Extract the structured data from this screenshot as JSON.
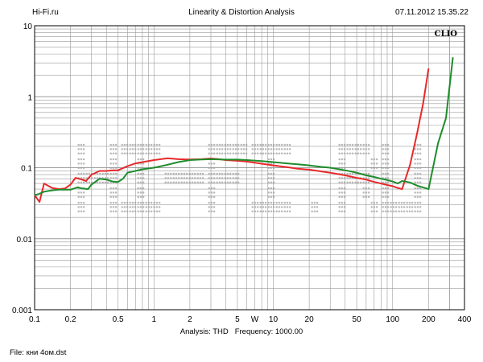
{
  "header": {
    "left": "Hi-Fi.ru",
    "center": "Linearity & Distortion Analysis",
    "right": "07.11.2012 15.35.22"
  },
  "brand": "CLIO",
  "watermark": "HI-FI.RU",
  "footer": {
    "analysis_label": "Analysis:",
    "analysis_value": "THD",
    "frequency_label": "Frequency:",
    "frequency_value": "1000.00",
    "file_label": "File:",
    "file_value": "кни 4ом.dst"
  },
  "colors": {
    "red_series": "#e8292b",
    "green_series": "#1e8c2b",
    "grid": "#9a9a9a",
    "watermark": "#b9b9b9"
  },
  "chart_data": {
    "type": "line",
    "x_scale": "log",
    "y_scale": "log",
    "xlim": [
      0.1,
      400
    ],
    "ylim": [
      0.001,
      10
    ],
    "x_tick_labels": [
      "0.1",
      "0.2",
      "0.5",
      "1",
      "2",
      "5",
      "W",
      "10",
      "20",
      "50",
      "100",
      "200",
      "400"
    ],
    "x_tick_values": [
      0.1,
      0.2,
      0.5,
      1,
      2,
      5,
      7,
      10,
      20,
      50,
      100,
      200,
      400
    ],
    "y_tick_labels": [
      "0.001",
      "0.01",
      "0.1",
      "1",
      "10"
    ],
    "y_tick_values": [
      0.001,
      0.01,
      0.1,
      1,
      10
    ],
    "grid": true,
    "series": [
      {
        "color": "#e8292b",
        "x": [
          0.1,
          0.11,
          0.12,
          0.14,
          0.16,
          0.18,
          0.2,
          0.22,
          0.25,
          0.27,
          0.3,
          0.35,
          0.4,
          0.45,
          0.5,
          0.6,
          0.7,
          0.8,
          1,
          1.3,
          1.6,
          2,
          2.5,
          3,
          3.5,
          4,
          5,
          6,
          7,
          8,
          10,
          13,
          16,
          20,
          25,
          30,
          40,
          50,
          60,
          70,
          80,
          90,
          100,
          110,
          120,
          140,
          160,
          180,
          200
        ],
        "y": [
          0.041,
          0.033,
          0.06,
          0.052,
          0.05,
          0.051,
          0.058,
          0.072,
          0.068,
          0.065,
          0.08,
          0.09,
          0.09,
          0.092,
          0.092,
          0.105,
          0.115,
          0.12,
          0.128,
          0.136,
          0.132,
          0.131,
          0.132,
          0.135,
          0.132,
          0.128,
          0.125,
          0.122,
          0.118,
          0.114,
          0.108,
          0.102,
          0.097,
          0.094,
          0.089,
          0.085,
          0.078,
          0.072,
          0.068,
          0.063,
          0.06,
          0.057,
          0.055,
          0.052,
          0.05,
          0.11,
          0.3,
          0.8,
          2.5
        ]
      },
      {
        "color": "#1e8c2b",
        "x": [
          0.1,
          0.11,
          0.12,
          0.14,
          0.16,
          0.2,
          0.23,
          0.25,
          0.28,
          0.3,
          0.35,
          0.4,
          0.45,
          0.5,
          0.55,
          0.6,
          0.8,
          1,
          1.3,
          1.6,
          2,
          2.5,
          3,
          4,
          5,
          6,
          8,
          10,
          13,
          16,
          20,
          25,
          30,
          40,
          50,
          60,
          70,
          80,
          90,
          100,
          110,
          120,
          140,
          160,
          200,
          240,
          280,
          320
        ],
        "y": [
          0.041,
          0.043,
          0.046,
          0.048,
          0.049,
          0.049,
          0.053,
          0.051,
          0.05,
          0.058,
          0.07,
          0.068,
          0.064,
          0.063,
          0.07,
          0.085,
          0.095,
          0.1,
          0.11,
          0.12,
          0.128,
          0.131,
          0.132,
          0.13,
          0.13,
          0.128,
          0.124,
          0.12,
          0.115,
          0.112,
          0.108,
          0.103,
          0.1,
          0.092,
          0.085,
          0.078,
          0.074,
          0.07,
          0.067,
          0.064,
          0.06,
          0.065,
          0.062,
          0.056,
          0.05,
          0.22,
          0.5,
          3.6
        ]
      }
    ]
  }
}
